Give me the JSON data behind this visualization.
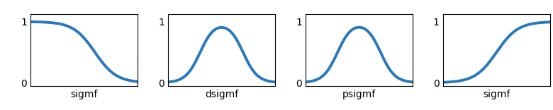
{
  "plots": [
    {
      "label": "sigmf",
      "type": "left_sigmoid",
      "params": {
        "a": -10,
        "c": 0.6
      }
    },
    {
      "label": "dsigmf",
      "type": "diff_sigmoid",
      "params": {
        "a1": 15,
        "c1": 0.3,
        "a2": 15,
        "c2": 0.7
      }
    },
    {
      "label": "psigmf",
      "type": "prod_sigmoid",
      "params": {
        "a1": 15,
        "c1": 0.3,
        "a2": -15,
        "c2": 0.7
      }
    },
    {
      "label": "sigmf",
      "type": "right_sigmoid",
      "params": {
        "a": 10,
        "c": 0.5
      }
    }
  ],
  "line_color": "#2878bd",
  "line_width": 2.8,
  "bg_color": "#ffffff",
  "xlim": [
    0,
    1
  ],
  "ylim": [
    -0.05,
    1.12
  ],
  "yticks": [
    0,
    1
  ],
  "label_fontsize": 10,
  "spine_color": "#000000",
  "tick_color": "#000000"
}
